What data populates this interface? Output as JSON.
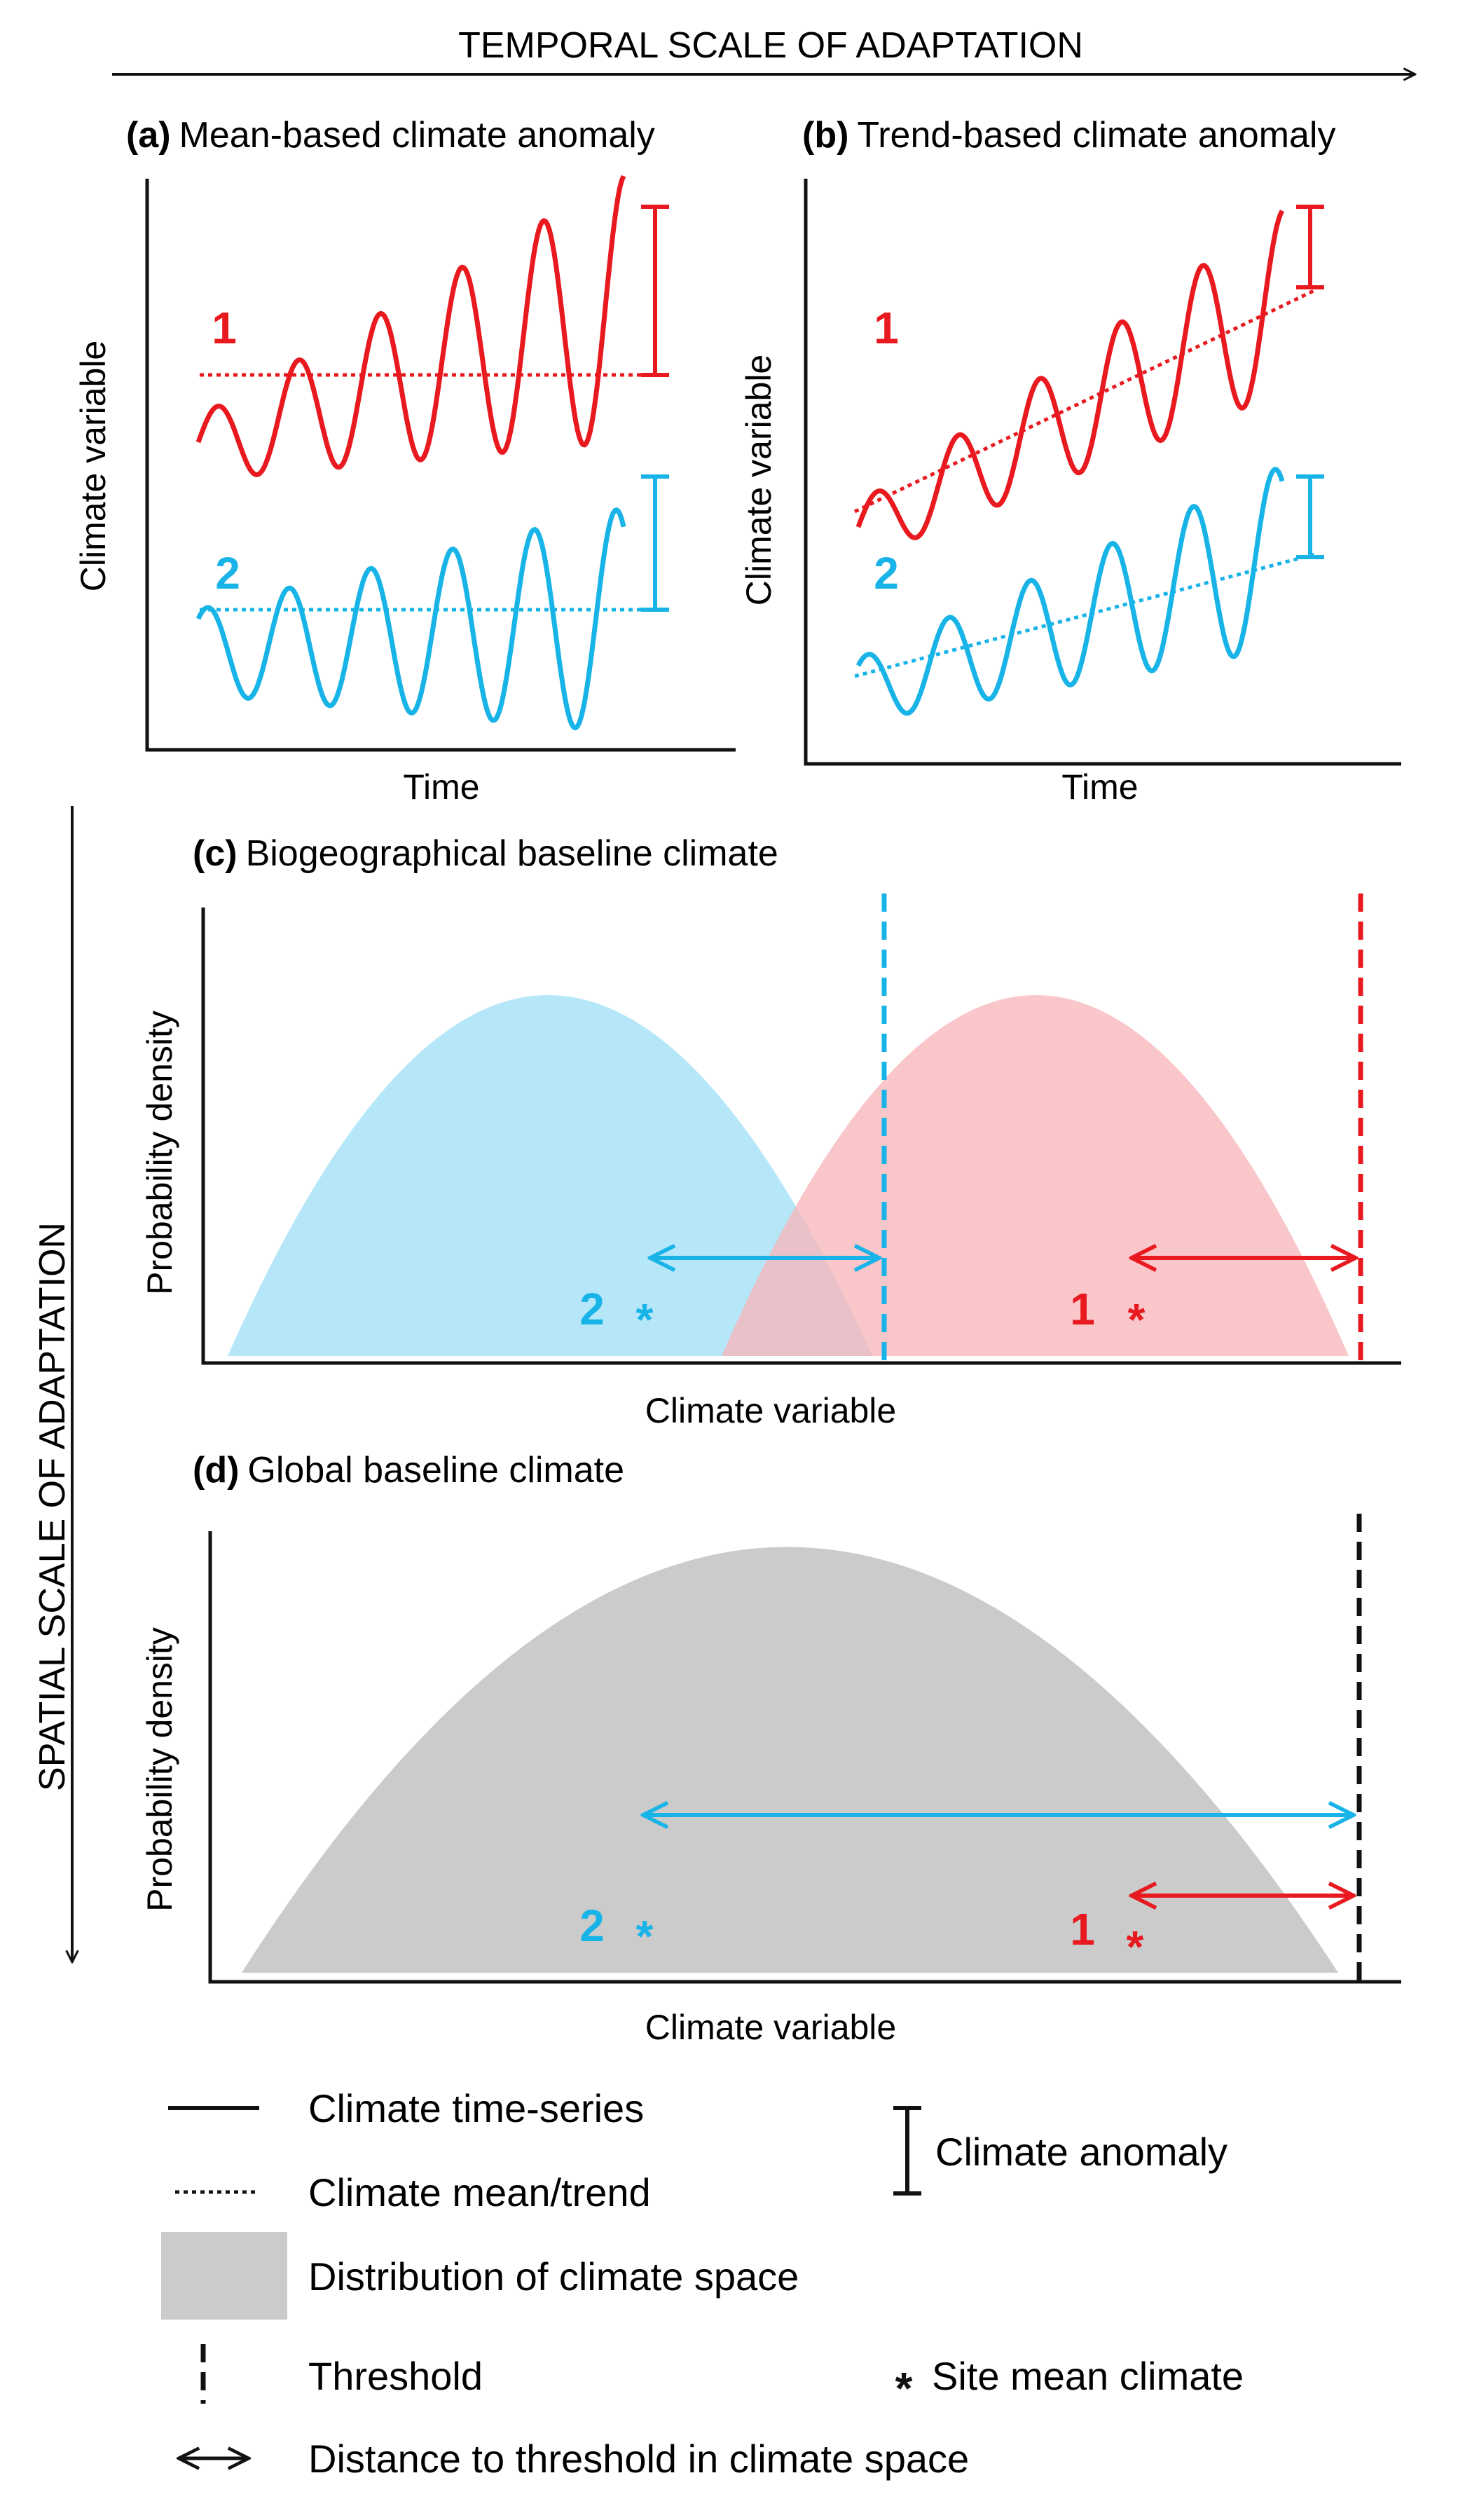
{
  "header": {
    "temporal_label": "TEMPORAL SCALE OF ADAPTATION",
    "spatial_label": "SPATIAL SCALE OF ADAPTATION"
  },
  "panels": {
    "a": {
      "letter": "(a)",
      "title": "Mean-based climate anomaly",
      "xlabel": "Time",
      "ylabel": "Climate variable"
    },
    "b": {
      "letter": "(b)",
      "title": "Trend-based climate anomaly",
      "xlabel": "Time",
      "ylabel": "Climate variable"
    },
    "c": {
      "letter": "(c)",
      "title": "Biogeographical baseline climate",
      "xlabel": "Climate variable",
      "ylabel": "Probability density"
    },
    "d": {
      "letter": "(d)",
      "title": "Global baseline climate",
      "xlabel": "Climate variable",
      "ylabel": "Probability density"
    }
  },
  "sites": {
    "one": {
      "label": "1",
      "color": "#e8191f"
    },
    "two": {
      "label": "2",
      "color": "#18b4e8"
    }
  },
  "colors": {
    "red_fill": "#f7b6bb",
    "blue_fill": "#b6e7f8",
    "grey_fill": "#cbcbcb",
    "axis": "#111111"
  },
  "marker": "*",
  "legend": {
    "series": "Climate time-series",
    "mean_trend": "Climate mean/trend",
    "anomaly": "Climate anomaly",
    "distribution": "Distribution of climate space",
    "threshold": "Threshold",
    "site_mean": "Site mean climate",
    "distance": "Distance to threshold in climate space"
  }
}
